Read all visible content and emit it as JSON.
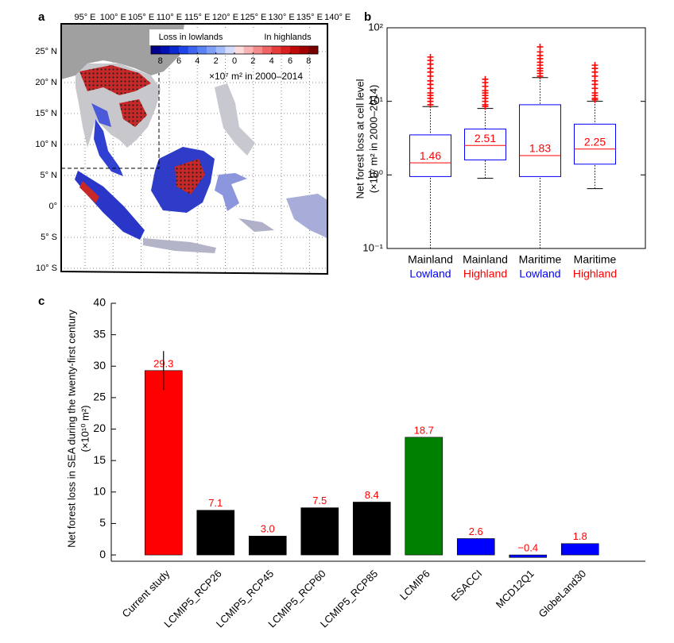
{
  "map": {
    "panel": "a",
    "longitudes": [
      "95° E",
      "100° E",
      "105° E",
      "110° E",
      "115° E",
      "120° E",
      "125° E",
      "130° E",
      "135° E",
      "140° E"
    ],
    "latitudes": [
      "25° N",
      "20° N",
      "15° N",
      "10° N",
      "5° N",
      "0°",
      "5° S",
      "10° S"
    ],
    "legend_left": "Loss in lowlands",
    "legend_right": "In highlands",
    "unit": "×10⁷ m² in 2000–2014",
    "colorbar": {
      "clim": [
        -9,
        9
      ],
      "colors": [
        "#00008c",
        "#0010b0",
        "#0a28d0",
        "#1e46e6",
        "#3c64f0",
        "#5a82f5",
        "#7e9ef8",
        "#a6bcfa",
        "#d4dcfc",
        "#fcdcdc",
        "#fab4b4",
        "#f58c8c",
        "#f06464",
        "#e63c3c",
        "#d81e1e",
        "#c00a0a",
        "#a00000",
        "#7a0000"
      ],
      "ticks": [
        {
          "value": -8,
          "label": "8"
        },
        {
          "value": -6,
          "label": "6"
        },
        {
          "value": -4,
          "label": "4"
        },
        {
          "value": -2,
          "label": "2"
        },
        0,
        2,
        4,
        6,
        8
      ]
    }
  },
  "chart_data": [
    {
      "panel": "b",
      "type": "box",
      "ylabel": "Net forest loss at cell level",
      "ylabel2": "(×10⁷ m² in 2000–2014)",
      "categories": [
        "Mainland",
        "Mainland",
        "Maritime",
        "Maritime"
      ],
      "subcategories": [
        "Lowland",
        "Highland",
        "Lowland",
        "Highland"
      ],
      "subcategory_colors": [
        "#0000ff",
        "#ff0000",
        "#0000ff",
        "#ff0000"
      ],
      "log_scale": true,
      "ylim": [
        0.1,
        100
      ],
      "yticks": [
        {
          "value": 0.1,
          "label": "10⁻¹"
        },
        {
          "value": 1,
          "label": "10⁰"
        },
        {
          "value": 10,
          "label": "10¹"
        },
        {
          "value": 100,
          "label": "10²"
        }
      ],
      "box_color": "#0000ff",
      "median_color": "#ff0000",
      "flier_color": "#ff0000",
      "whislo": [
        0.1,
        0.9,
        0.1,
        0.65
      ],
      "q1": [
        0.95,
        1.6,
        0.95,
        1.4
      ],
      "median": [
        1.46,
        2.51,
        1.83,
        2.25
      ],
      "q3": [
        3.5,
        4.2,
        9,
        4.9
      ],
      "whishi": [
        8.5,
        8,
        21,
        10
      ],
      "fliers": [
        [
          9,
          10,
          11,
          12,
          13,
          15,
          17,
          19,
          22,
          25,
          28,
          32,
          36,
          40
        ],
        [
          8.5,
          9,
          10,
          11,
          12,
          13,
          14,
          16,
          18,
          20
        ],
        [
          22,
          24,
          26,
          28,
          31,
          34,
          38,
          42,
          47,
          55
        ],
        [
          10.5,
          11,
          12,
          13,
          15,
          17,
          19,
          22,
          25,
          28,
          31
        ]
      ]
    },
    {
      "panel": "c",
      "type": "bar",
      "ylabel": "Net forest loss in SEA during the twenty-first century",
      "ylabel2": "(×10¹⁰ m²)",
      "categories": [
        "Current study",
        "LCMIP5_RCP26",
        "LCMIP5_RCP45",
        "LCMIP5_RCP60",
        "LCMIP5_RCP85",
        "LCMIP6",
        "ESACCI",
        "MCD12Q1",
        "GlobeLand30"
      ],
      "values": [
        29.3,
        7.1,
        3.0,
        7.5,
        8.4,
        18.7,
        2.6,
        -0.4,
        1.8
      ],
      "value_labels": [
        "29.3",
        "7.1",
        "3.0",
        "7.5",
        "8.4",
        "18.7",
        "2.6",
        "−0.4",
        "1.8"
      ],
      "errors": [
        3.1,
        null,
        null,
        null,
        null,
        null,
        null,
        null,
        null
      ],
      "colors": [
        "#ff0000",
        "#000000",
        "#000000",
        "#000000",
        "#000000",
        "#008000",
        "#0000ff",
        "#0000ff",
        "#0000ff"
      ],
      "value_label_color": "#ff0000",
      "ylim": [
        -1,
        40
      ],
      "yticks": [
        0,
        5,
        10,
        15,
        20,
        25,
        30,
        35,
        40
      ]
    }
  ]
}
